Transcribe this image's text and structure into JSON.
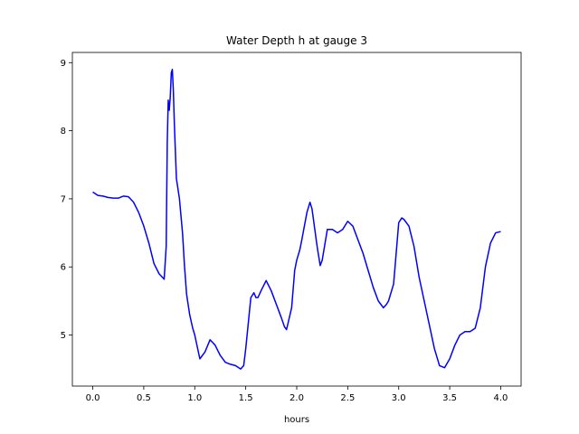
{
  "chart_data": {
    "type": "line",
    "title": "Water Depth h at gauge 3",
    "xlabel": "hours",
    "ylabel": "",
    "xlim": [
      -0.2,
      4.2
    ],
    "ylim": [
      4.25,
      9.15
    ],
    "xticks": [
      0.0,
      0.5,
      1.0,
      1.5,
      2.0,
      2.5,
      3.0,
      3.5,
      4.0
    ],
    "xtick_labels": [
      "0.0",
      "0.5",
      "1.0",
      "1.5",
      "2.0",
      "2.5",
      "3.0",
      "3.5",
      "4.0"
    ],
    "yticks": [
      5,
      6,
      7,
      8,
      9
    ],
    "ytick_labels": [
      "5",
      "6",
      "7",
      "8",
      "9"
    ],
    "grid": false,
    "series": [
      {
        "color": "#0000ff",
        "x": [
          0.0,
          0.05,
          0.1,
          0.15,
          0.2,
          0.25,
          0.3,
          0.35,
          0.4,
          0.45,
          0.5,
          0.55,
          0.6,
          0.65,
          0.7,
          0.72,
          0.73,
          0.74,
          0.75,
          0.76,
          0.77,
          0.78,
          0.79,
          0.8,
          0.82,
          0.85,
          0.88,
          0.9,
          0.92,
          0.95,
          0.98,
          1.0,
          1.05,
          1.1,
          1.15,
          1.2,
          1.25,
          1.3,
          1.35,
          1.4,
          1.45,
          1.48,
          1.5,
          1.55,
          1.58,
          1.6,
          1.62,
          1.65,
          1.7,
          1.75,
          1.8,
          1.85,
          1.88,
          1.9,
          1.95,
          1.98,
          2.0,
          2.03,
          2.05,
          2.1,
          2.13,
          2.15,
          2.2,
          2.23,
          2.25,
          2.3,
          2.35,
          2.4,
          2.45,
          2.5,
          2.55,
          2.6,
          2.65,
          2.7,
          2.75,
          2.8,
          2.85,
          2.88,
          2.9,
          2.95,
          3.0,
          3.03,
          3.05,
          3.1,
          3.15,
          3.2,
          3.25,
          3.3,
          3.35,
          3.4,
          3.45,
          3.5,
          3.55,
          3.6,
          3.65,
          3.7,
          3.75,
          3.8,
          3.85,
          3.9,
          3.95,
          4.0
        ],
        "values": [
          7.1,
          7.05,
          7.04,
          7.02,
          7.01,
          7.01,
          7.04,
          7.03,
          6.95,
          6.8,
          6.6,
          6.35,
          6.05,
          5.9,
          5.82,
          6.3,
          7.8,
          8.45,
          8.3,
          8.5,
          8.85,
          8.9,
          8.6,
          8.1,
          7.3,
          7.0,
          6.5,
          6.0,
          5.6,
          5.3,
          5.1,
          5.0,
          4.65,
          4.75,
          4.93,
          4.85,
          4.7,
          4.6,
          4.57,
          4.55,
          4.5,
          4.55,
          4.8,
          5.55,
          5.62,
          5.55,
          5.55,
          5.65,
          5.8,
          5.65,
          5.45,
          5.25,
          5.12,
          5.08,
          5.4,
          5.95,
          6.1,
          6.25,
          6.4,
          6.8,
          6.95,
          6.85,
          6.3,
          6.02,
          6.1,
          6.55,
          6.55,
          6.5,
          6.55,
          6.67,
          6.6,
          6.4,
          6.2,
          5.95,
          5.7,
          5.5,
          5.4,
          5.45,
          5.5,
          5.75,
          6.65,
          6.72,
          6.7,
          6.6,
          6.3,
          5.85,
          5.5,
          5.15,
          4.8,
          4.55,
          4.52,
          4.65,
          4.85,
          5.0,
          5.05,
          5.05,
          5.1,
          5.4,
          6.0,
          6.35,
          6.5,
          6.52
        ]
      }
    ]
  }
}
